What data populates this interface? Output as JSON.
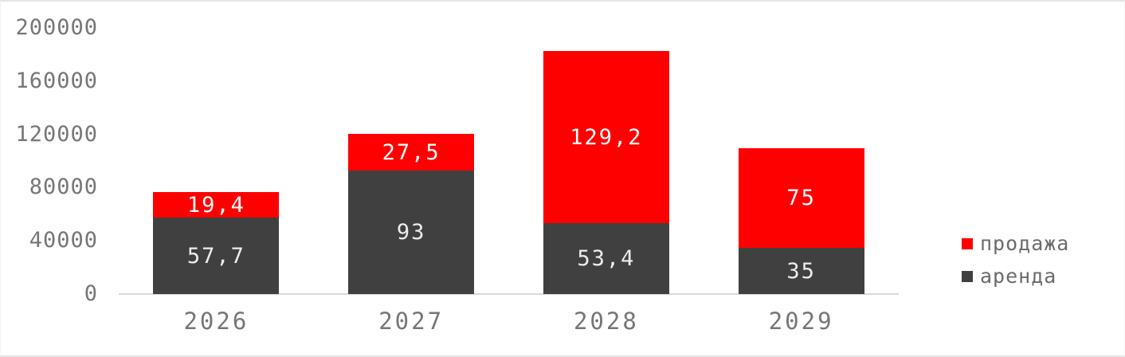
{
  "chart_data": {
    "type": "bar",
    "stacked": true,
    "title": "",
    "xlabel": "",
    "ylabel": "",
    "categories": [
      "2026",
      "2027",
      "2028",
      "2029"
    ],
    "series": [
      {
        "name": "аренда",
        "color": "#404040",
        "label_color": "#ededed",
        "values": [
          57700,
          93000,
          53400,
          35000
        ],
        "labels": [
          "57,7",
          "93",
          "53,4",
          "35"
        ]
      },
      {
        "name": "продажа",
        "color": "#ff0000",
        "label_color": "#ffffff",
        "values": [
          19400,
          27500,
          129200,
          75000
        ],
        "labels": [
          "19,4",
          "27,5",
          "129,2",
          "75"
        ]
      }
    ],
    "y_axis": {
      "min": 0,
      "max": 200000,
      "tick_interval": 40000,
      "tick_labels": [
        "200000",
        "160000",
        "120000",
        "80000",
        "40000",
        "0"
      ]
    },
    "legend": {
      "position": "right",
      "items": [
        {
          "label": "продажа",
          "color": "#ff0000"
        },
        {
          "label": "аренда",
          "color": "#404040"
        }
      ]
    },
    "grid": false
  },
  "colors": {
    "axis_text": "#767676",
    "baseline": "#d9d9d9",
    "background": "#ffffff",
    "frame_border": "#e4e4e4"
  }
}
